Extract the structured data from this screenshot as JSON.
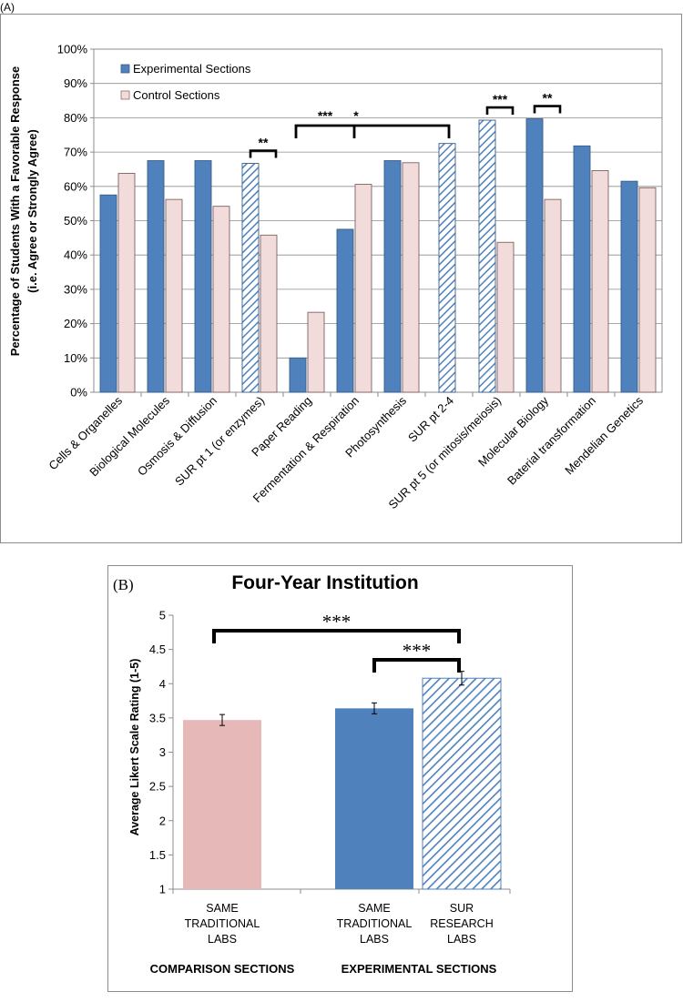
{
  "panel_a": {
    "tag": "(A)",
    "chart_data": {
      "type": "bar",
      "title": "",
      "ylabel_line1": "Percentage of Students With a Favorable Response",
      "ylabel_line2": "(i.e. Agree or Strongly Agree)",
      "xlabel": "",
      "ylim": [
        0,
        100
      ],
      "yticks": [
        "0%",
        "10%",
        "20%",
        "30%",
        "40%",
        "50%",
        "60%",
        "70%",
        "80%",
        "90%",
        "100%"
      ],
      "categories": [
        "Cells & Organelles",
        "Biological Molecules",
        "Osmosis & Diffusion",
        "SUR pt 1 (or enzymes)",
        "Paper Reading",
        "Fermentation & Respiration",
        "Photosynthesis",
        "SUR pt 2-4",
        "SUR pt 5 (or mitosis/meiosis)",
        "Molecular Biology",
        "Baterial transformation",
        "Mendelian Genetics"
      ],
      "series": [
        {
          "name": "Experimental Sections",
          "color": "#4f81bd",
          "values": [
            57.5,
            67.5,
            67.5,
            66.7,
            10,
            47.5,
            67.5,
            72.5,
            79.3,
            79.7,
            71.8,
            61.5
          ]
        },
        {
          "name": "Control Sections",
          "color": "#f2dcdb",
          "values": [
            63.8,
            56.2,
            54.2,
            45.8,
            23.3,
            60.6,
            66.9,
            null,
            43.7,
            56.2,
            64.6,
            59.6
          ]
        }
      ],
      "hatched_experimental": [
        3,
        7,
        8
      ],
      "legend": [
        "Experimental Sections",
        "Control Sections"
      ],
      "legend_position": "top-left",
      "significance": [
        {
          "label": "**",
          "from": 3,
          "to": 3
        },
        {
          "label": "***",
          "from": 4,
          "to": 7
        },
        {
          "label": "*",
          "from": 5,
          "to": 7
        },
        {
          "label": "***",
          "from": 8,
          "to": 8
        },
        {
          "label": "**",
          "from": 9,
          "to": 9
        }
      ]
    }
  },
  "panel_b": {
    "tag": "(B)",
    "chart_data": {
      "type": "bar",
      "title": "Four-Year Institution",
      "ylabel": "Average Likert Scale Rating (1-5)",
      "ylim": [
        1,
        5
      ],
      "yticks": [
        "1",
        "1.5",
        "2",
        "2.5",
        "3",
        "3.5",
        "4",
        "4.5",
        "5"
      ],
      "bars": [
        {
          "name": "SAME TRADITIONAL LABS",
          "label_lines": [
            "SAME",
            "TRADITIONAL",
            "LABS"
          ],
          "value": 3.47,
          "error": 0.08,
          "color": "#e6b9b8",
          "hatched": false,
          "group": 0
        },
        {
          "name": "SAME TRADITIONAL LABS",
          "label_lines": [
            "SAME",
            "TRADITIONAL",
            "LABS"
          ],
          "value": 3.64,
          "error": 0.08,
          "color": "#4f81bd",
          "hatched": false,
          "group": 1
        },
        {
          "name": "SUR RESEARCH LABS",
          "label_lines": [
            "SUR",
            "RESEARCH",
            "LABS"
          ],
          "value": 4.08,
          "error": 0.1,
          "color": "#4f81bd",
          "hatched": true,
          "group": 1
        }
      ],
      "groups": [
        "COMPARISON SECTIONS",
        "EXPERIMENTAL SECTIONS"
      ],
      "significance": [
        {
          "label": "***",
          "from": 0,
          "to": 2
        },
        {
          "label": "***",
          "from": 1,
          "to": 2
        }
      ]
    }
  }
}
